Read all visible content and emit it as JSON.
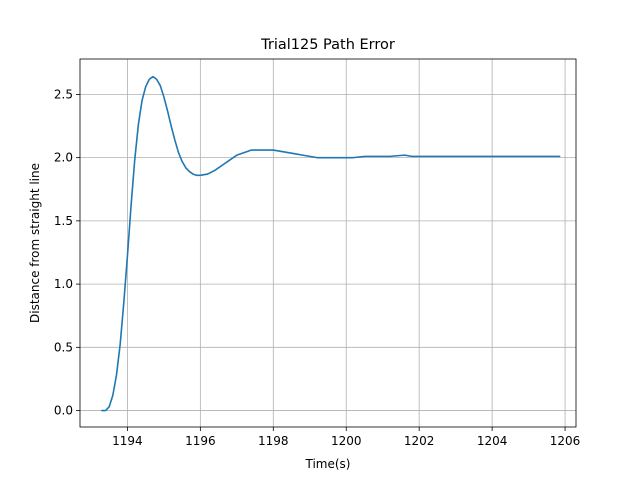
{
  "chart_data": {
    "type": "line",
    "title": "Trial125 Path Error",
    "xlabel": "Time(s)",
    "ylabel": "Distance from straight line",
    "xlim": [
      1192.7,
      1206.3
    ],
    "ylim": [
      -0.13,
      2.78
    ],
    "xticks": [
      1194,
      1196,
      1198,
      1200,
      1202,
      1204,
      1206
    ],
    "yticks": [
      0.0,
      0.5,
      1.0,
      1.5,
      2.0,
      2.5
    ],
    "ytick_labels": [
      "0.0",
      "0.5",
      "1.0",
      "1.5",
      "2.0",
      "2.5"
    ],
    "grid": true,
    "legend": "none",
    "series": [
      {
        "color": "#1f77b4",
        "x": [
          1193.3,
          1193.4,
          1193.5,
          1193.6,
          1193.7,
          1193.8,
          1193.9,
          1194.0,
          1194.1,
          1194.2,
          1194.3,
          1194.4,
          1194.5,
          1194.6,
          1194.7,
          1194.8,
          1194.9,
          1195.0,
          1195.1,
          1195.2,
          1195.3,
          1195.4,
          1195.5,
          1195.6,
          1195.7,
          1195.8,
          1195.9,
          1196.0,
          1196.2,
          1196.4,
          1196.6,
          1196.8,
          1197.0,
          1197.2,
          1197.4,
          1197.6,
          1197.8,
          1198.0,
          1198.2,
          1198.4,
          1198.6,
          1198.8,
          1199.0,
          1199.2,
          1199.4,
          1199.8,
          1200.2,
          1200.5,
          1200.8,
          1201.2,
          1201.6,
          1201.8,
          1202.2,
          1203.0,
          1204.0,
          1205.0,
          1205.85
        ],
        "y": [
          0.0,
          0.0,
          0.03,
          0.12,
          0.28,
          0.52,
          0.85,
          1.22,
          1.62,
          1.98,
          2.26,
          2.45,
          2.56,
          2.62,
          2.64,
          2.62,
          2.57,
          2.48,
          2.37,
          2.25,
          2.14,
          2.04,
          1.97,
          1.92,
          1.89,
          1.87,
          1.86,
          1.86,
          1.87,
          1.9,
          1.94,
          1.98,
          2.02,
          2.04,
          2.06,
          2.06,
          2.06,
          2.06,
          2.05,
          2.04,
          2.03,
          2.02,
          2.01,
          2.0,
          2.0,
          2.0,
          2.0,
          2.01,
          2.01,
          2.01,
          2.02,
          2.01,
          2.01,
          2.01,
          2.01,
          2.01,
          2.01
        ]
      }
    ]
  }
}
